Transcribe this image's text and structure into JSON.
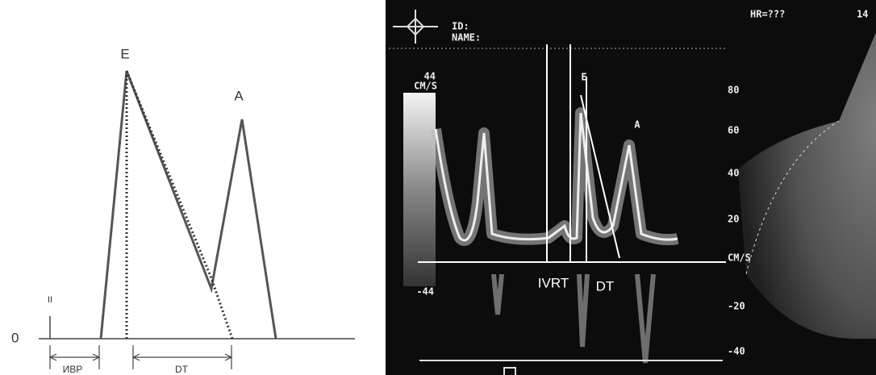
{
  "schematic": {
    "peak_e": "E",
    "peak_a": "A",
    "marker": "II",
    "zero": "0",
    "ivrt": "ИВР",
    "dt": "DT"
  },
  "doppler": {
    "id": "ID:",
    "name": "NAME:",
    "hr": "HR=???",
    "frame": "14",
    "scale_max": "44",
    "scale_unit": "CM/S",
    "scale_min": "-44",
    "peak_e": "E",
    "peak_a": "A",
    "ivrt": "IVRT",
    "dt": "DT",
    "velocity_ticks": [
      "80",
      "60",
      "40",
      "20",
      "CM/S",
      "-20",
      "-40"
    ]
  }
}
